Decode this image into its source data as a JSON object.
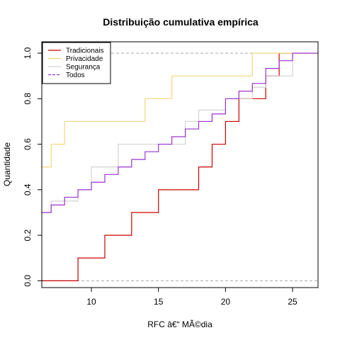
{
  "chart_data": {
    "type": "line",
    "title": "Distribuição cumulativa empírica",
    "xlabel": "RFC â€“ MÃ©dia",
    "ylabel": "Quantidade",
    "xlim": [
      6.3,
      26.9
    ],
    "ylim": [
      -0.03,
      1.05
    ],
    "x_ticks": [
      "10",
      "15",
      "20",
      "25"
    ],
    "x_tick_values": [
      10,
      15,
      20,
      25
    ],
    "y_ticks": [
      "0.0",
      "0.2",
      "0.4",
      "0.6",
      "0.8",
      "1.0"
    ],
    "y_tick_values": [
      0,
      0.2,
      0.4,
      0.6,
      0.8,
      1.0
    ],
    "reference_lines": [
      0,
      1
    ],
    "legend_position": "top-left",
    "series": [
      {
        "name": "Tradicionais",
        "color": "#cc0000",
        "dash": "solid",
        "start": 0,
        "steps": [
          [
            9,
            0.1
          ],
          [
            11,
            0.2
          ],
          [
            13,
            0.3
          ],
          [
            15,
            0.4
          ],
          [
            18,
            0.5
          ],
          [
            19,
            0.6
          ],
          [
            20,
            0.7
          ],
          [
            21,
            0.8
          ],
          [
            23,
            0.9
          ],
          [
            24,
            1.0
          ]
        ]
      },
      {
        "name": "Privacidade",
        "color": "#f5d57a",
        "dash": "solid",
        "start": 0.5,
        "steps": [
          [
            7,
            0.6
          ],
          [
            8,
            0.7
          ],
          [
            14,
            0.8
          ],
          [
            16,
            0.9
          ],
          [
            22,
            1.0
          ]
        ]
      },
      {
        "name": "Segurança",
        "color": "#d3d3d3",
        "dash": "solid",
        "start": 0.3,
        "steps": [
          [
            7,
            0.35
          ],
          [
            9,
            0.4
          ],
          [
            10,
            0.5
          ],
          [
            12,
            0.6
          ],
          [
            17,
            0.7
          ],
          [
            18,
            0.75
          ],
          [
            20,
            0.8
          ],
          [
            22,
            0.85
          ],
          [
            23,
            0.9
          ],
          [
            25,
            1.0
          ]
        ]
      },
      {
        "name": "Todos",
        "color": "#9a32cd",
        "dash": "dashed",
        "start": 0.3,
        "steps": [
          [
            7,
            0.333
          ],
          [
            8,
            0.367
          ],
          [
            9,
            0.4
          ],
          [
            10,
            0.433
          ],
          [
            11,
            0.467
          ],
          [
            12,
            0.5
          ],
          [
            13,
            0.533
          ],
          [
            14,
            0.567
          ],
          [
            15,
            0.6
          ],
          [
            16,
            0.633
          ],
          [
            17,
            0.667
          ],
          [
            18,
            0.7
          ],
          [
            19,
            0.733
          ],
          [
            20,
            0.8
          ],
          [
            21,
            0.833
          ],
          [
            22,
            0.867
          ],
          [
            23,
            0.933
          ],
          [
            24,
            0.967
          ],
          [
            25,
            1.0
          ]
        ]
      }
    ]
  }
}
